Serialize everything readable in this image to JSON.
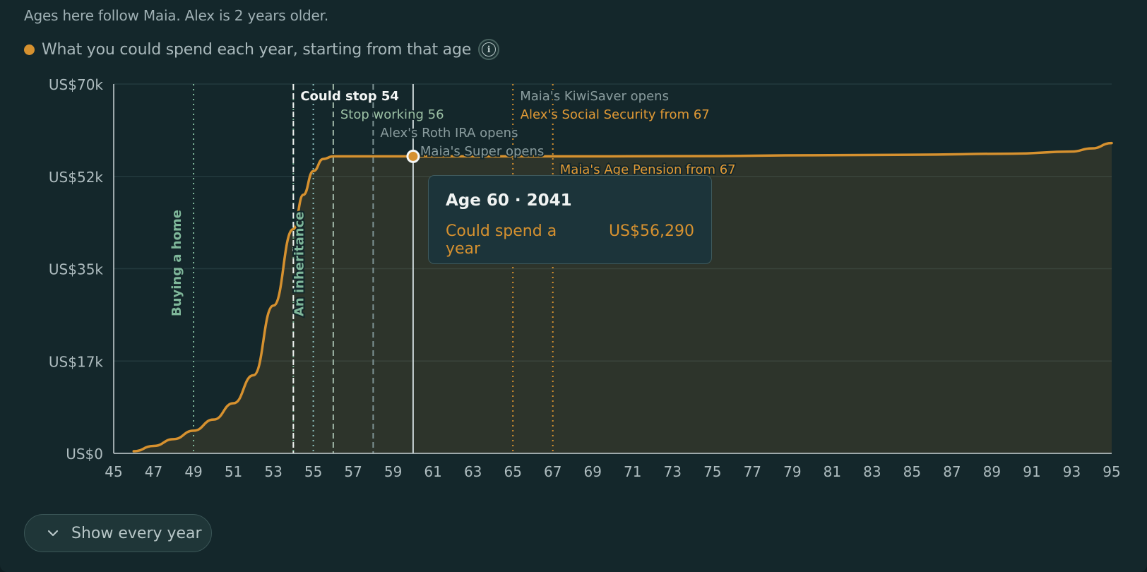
{
  "note": "Ages here follow Maia. Alex is 2 years older.",
  "legend": {
    "label": "What you could spend each year, starting from that age",
    "color": "#d6912f",
    "info_icon": "info-icon"
  },
  "tooltip": {
    "title": "Age 60 · 2041",
    "label": "Could spend a year",
    "value": "US$56,290"
  },
  "show_every_year": {
    "label": "Show every year",
    "icon": "chevron-down-icon"
  },
  "chart_data": {
    "type": "area",
    "title": "",
    "xlabel": "",
    "ylabel": "",
    "xlim": [
      45,
      95
    ],
    "ylim": [
      0,
      70000
    ],
    "x_ticks": [
      45,
      47,
      49,
      51,
      53,
      55,
      57,
      59,
      61,
      63,
      65,
      67,
      69,
      71,
      73,
      75,
      77,
      79,
      81,
      83,
      85,
      87,
      89,
      91,
      93,
      95
    ],
    "y_ticks": [
      {
        "value": 0,
        "label": "US$0"
      },
      {
        "value": 17500,
        "label": "US$17k"
      },
      {
        "value": 35000,
        "label": "US$35k"
      },
      {
        "value": 52500,
        "label": "US$52k"
      },
      {
        "value": 70000,
        "label": "US$70k"
      }
    ],
    "grid": true,
    "series": [
      {
        "color": "#d6912f",
        "x": [
          46,
          47,
          48,
          49,
          50,
          51,
          52,
          53,
          54,
          54.5,
          55,
          55.5,
          56,
          57,
          58,
          59,
          60,
          61,
          63,
          65,
          67,
          70,
          75,
          80,
          85,
          90,
          93,
          94,
          95
        ],
        "y": [
          400,
          1400,
          2700,
          4300,
          6400,
          9500,
          14800,
          28000,
          42500,
          49000,
          53500,
          55800,
          56300,
          56300,
          56300,
          56300,
          56290,
          56290,
          56290,
          56290,
          56300,
          56300,
          56350,
          56500,
          56600,
          56800,
          57200,
          57800,
          58800
        ]
      }
    ],
    "highlight_point": {
      "x": 60,
      "y": 56290
    },
    "events": [
      {
        "x": 49,
        "label": "Buying a home",
        "style": "dotted",
        "color": "#7fb79a",
        "label_orientation": "vertical"
      },
      {
        "x": 54,
        "label": "An inheritance",
        "style": "dotted",
        "color": "#7fb79a",
        "label_orientation": "vertical"
      },
      {
        "x": 54,
        "label": "Could stop 54",
        "style": "dashed",
        "color": "#f0f3f2",
        "label_color": "#f4f6f5"
      },
      {
        "x": 55,
        "label": "",
        "style": "dotted",
        "color": "#8fc2c0"
      },
      {
        "x": 56,
        "label": "Stop working 56",
        "style": "dashed",
        "color": "#a0b8a8",
        "label_color": "#9cc1a5"
      },
      {
        "x": 58,
        "label": "Alex's Roth IRA opens",
        "style": "dashed",
        "color": "#7e9395",
        "label_color": "#8a9c9e"
      },
      {
        "x": 60,
        "label": "Maia's Super opens",
        "style": "solid",
        "color": "#c9d4d6",
        "label_color": "#8a9c9e"
      },
      {
        "x": 65,
        "label": "Maia's KiwiSaver opens",
        "style": "dotted",
        "color": "#d6912f",
        "label_color": "#8a9c9e"
      },
      {
        "x": 67,
        "label": "Alex's Social Security from 67",
        "style": "dotted",
        "color": "#d6912f",
        "label_color": "#e29a35"
      },
      {
        "x": 67,
        "label": "Maia's Age Pension from 67",
        "style": "dotted",
        "color": "#d6912f",
        "label_color": "#e29a35"
      }
    ]
  }
}
